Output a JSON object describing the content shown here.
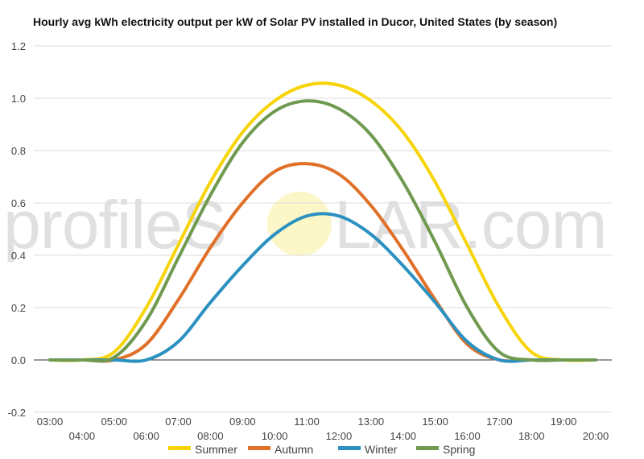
{
  "chart_data": {
    "type": "line",
    "title": "Hourly avg kWh electricity output per kW of Solar PV installed in Ducor, United States (by season)",
    "xlabel": "",
    "ylabel": "",
    "ylim": [
      -0.2,
      1.2
    ],
    "yticks": [
      "-0.2",
      "0.0",
      "0.2",
      "0.4",
      "0.6",
      "0.8",
      "1.0",
      "1.2"
    ],
    "grid": true,
    "legend_position": "bottom",
    "x": [
      "03:00",
      "04:00",
      "05:00",
      "06:00",
      "07:00",
      "08:00",
      "09:00",
      "10:00",
      "11:00",
      "12:00",
      "13:00",
      "14:00",
      "15:00",
      "16:00",
      "17:00",
      "18:00",
      "19:00",
      "20:00"
    ],
    "series": [
      {
        "name": "Summer",
        "color": "#f7d40a",
        "values": [
          0.0,
          0.0,
          0.03,
          0.2,
          0.44,
          0.68,
          0.87,
          0.99,
          1.05,
          1.05,
          0.99,
          0.87,
          0.68,
          0.44,
          0.2,
          0.03,
          0.0,
          0.0
        ]
      },
      {
        "name": "Autumn",
        "color": "#e07028",
        "values": [
          0.0,
          0.0,
          0.0,
          0.06,
          0.23,
          0.43,
          0.6,
          0.72,
          0.75,
          0.71,
          0.59,
          0.42,
          0.23,
          0.06,
          0.0,
          0.0,
          0.0,
          0.0
        ]
      },
      {
        "name": "Winter",
        "color": "#2a91c0",
        "values": [
          0.0,
          0.0,
          0.0,
          0.0,
          0.07,
          0.22,
          0.36,
          0.48,
          0.55,
          0.55,
          0.48,
          0.36,
          0.22,
          0.07,
          0.0,
          0.0,
          0.0,
          0.0
        ]
      },
      {
        "name": "Spring",
        "color": "#6f9a50",
        "values": [
          0.0,
          0.0,
          0.01,
          0.15,
          0.39,
          0.63,
          0.83,
          0.95,
          0.99,
          0.96,
          0.86,
          0.68,
          0.45,
          0.2,
          0.03,
          0.0,
          0.0,
          0.0
        ]
      }
    ]
  },
  "watermark": {
    "left": "profileS",
    "right": "LAR.com"
  }
}
